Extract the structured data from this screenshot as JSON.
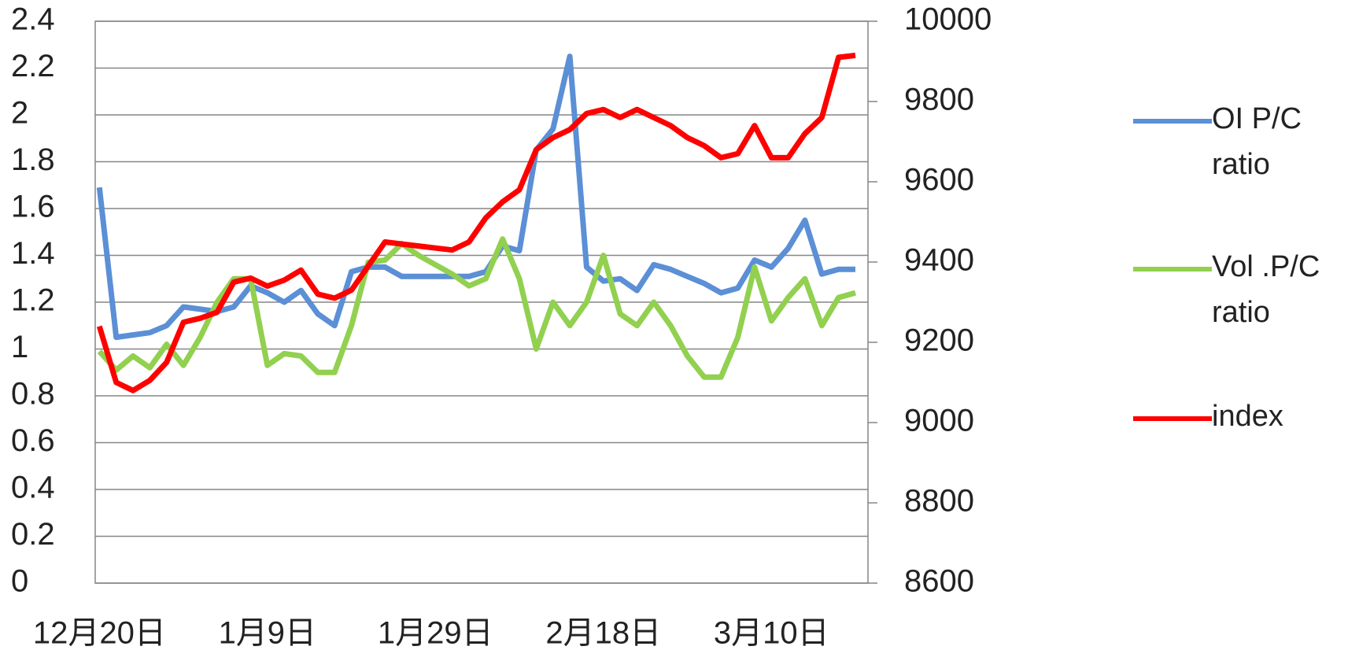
{
  "chart_data": {
    "type": "line",
    "categories": [
      "12月20日",
      null,
      null,
      null,
      null,
      null,
      null,
      null,
      null,
      null,
      "1月9日",
      null,
      null,
      null,
      null,
      null,
      null,
      null,
      null,
      null,
      "1月29日",
      null,
      null,
      null,
      null,
      null,
      null,
      null,
      null,
      null,
      "2月18日",
      null,
      null,
      null,
      null,
      null,
      null,
      null,
      null,
      null,
      "3月10日",
      null,
      null,
      null,
      null,
      null
    ],
    "series": [
      {
        "name": "OI P/C ratio",
        "color": "#5b8fd6",
        "values": [
          1.69,
          1.05,
          1.06,
          1.07,
          1.1,
          1.18,
          1.17,
          1.16,
          1.18,
          1.27,
          1.24,
          1.2,
          1.25,
          1.15,
          1.1,
          1.33,
          1.35,
          1.35,
          1.31,
          1.31,
          1.31,
          1.31,
          1.31,
          1.33,
          1.44,
          1.42,
          1.85,
          1.94,
          2.25,
          1.35,
          1.29,
          1.3,
          1.25,
          1.36,
          1.34,
          1.31,
          1.28,
          1.24,
          1.26,
          1.38,
          1.35,
          1.43,
          1.55,
          1.32,
          1.34,
          1.34
        ]
      },
      {
        "name": "Vol .P/C ratio",
        "color": "#92d050",
        "values": [
          0.99,
          0.91,
          0.97,
          0.92,
          1.02,
          0.93,
          1.05,
          1.2,
          1.3,
          1.3,
          0.93,
          0.98,
          0.97,
          0.9,
          0.9,
          1.1,
          1.37,
          1.38,
          1.45,
          1.4,
          1.36,
          1.32,
          1.27,
          1.3,
          1.47,
          1.3,
          1.0,
          1.2,
          1.1,
          1.2,
          1.4,
          1.15,
          1.1,
          1.2,
          1.1,
          0.97,
          0.88,
          0.88,
          1.05,
          1.35,
          1.12,
          1.22,
          1.3,
          1.1,
          1.22,
          1.24
        ]
      },
      {
        "name": "index",
        "color": "#ff0000",
        "axis": "y2",
        "values": [
          9240,
          9100,
          9080,
          9105,
          9150,
          9250,
          9260,
          9275,
          9350,
          9360,
          9340,
          9355,
          9380,
          9320,
          9310,
          9330,
          9390,
          9450,
          9445,
          9440,
          9435,
          9430,
          9450,
          9510,
          9550,
          9580,
          9680,
          9710,
          9730,
          9770,
          9780,
          9760,
          9780,
          9760,
          9740,
          9710,
          9690,
          9660,
          9670,
          9740,
          9660,
          9660,
          9720,
          9760,
          9910,
          9915
        ]
      }
    ],
    "ylim": [
      0,
      2.4
    ],
    "yticks": [
      0,
      0.2,
      0.4,
      0.6,
      0.8,
      1,
      1.2,
      1.4,
      1.6,
      1.8,
      2,
      2.2,
      2.4
    ],
    "y2lim": [
      8600,
      10000
    ],
    "y2ticks": [
      8600,
      8800,
      9000,
      9200,
      9400,
      9600,
      9800,
      10000
    ],
    "grid": true,
    "legend": "right"
  }
}
